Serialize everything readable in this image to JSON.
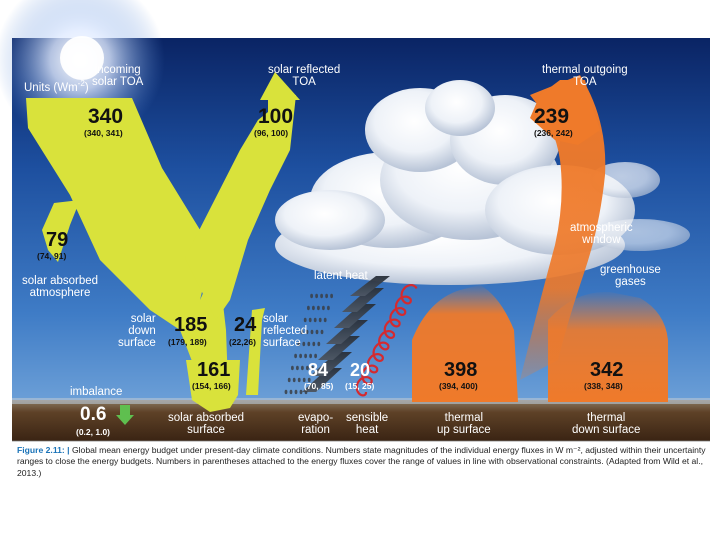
{
  "units": "Units (Wm",
  "units_sup": "-2",
  "units_close": ")",
  "incoming": {
    "line1": "incoming",
    "line2": "solar TOA",
    "value": "340",
    "range": "(340, 341)"
  },
  "solar_reflected_toa": {
    "line1": "solar reflected",
    "line2": "TOA",
    "value": "100",
    "range": "(96, 100)"
  },
  "thermal_outgoing_toa": {
    "line1": "thermal outgoing",
    "line2": "TOA",
    "value": "239",
    "range": "(236, 242)"
  },
  "solar_absorbed_atmosphere": {
    "line1": "solar absorbed",
    "line2": "atmosphere",
    "value": "79",
    "range": "(74, 91)"
  },
  "solar_down_surface": {
    "line1": "solar",
    "line2": "down",
    "line3": "surface",
    "value": "185",
    "range": "(179, 189)"
  },
  "solar_reflected_surface": {
    "line1": "solar",
    "line2": "reflected",
    "line3": "surface",
    "value": "24",
    "range": "(22,26)"
  },
  "solar_absorbed_surface": {
    "line1": "solar absorbed",
    "line2": "surface",
    "value": "161",
    "range": "(154, 166)"
  },
  "latent_heat": {
    "label": "latent heat"
  },
  "evaporation": {
    "line1": "evapo-",
    "line2": "ration",
    "value": "84",
    "range": "(70, 85)"
  },
  "sensible_heat": {
    "line1": "sensible",
    "line2": "heat",
    "value": "20",
    "range": "(15, 25)"
  },
  "thermal_up_surface": {
    "line1": "thermal",
    "line2": "up surface",
    "value": "398",
    "range": "(394, 400)"
  },
  "thermal_down_surface": {
    "line1": "thermal",
    "line2": "down surface",
    "value": "342",
    "range": "(338, 348)"
  },
  "atmospheric_window": {
    "line1": "atmospheric",
    "line2": "window"
  },
  "greenhouse_gases": {
    "line1": "greenhouse",
    "line2": "gases"
  },
  "imbalance": {
    "label": "imbalance",
    "value": "0.6",
    "range": "(0.2, 1.0)"
  },
  "caption": {
    "figure_label": "Figure 2.11: |",
    "text": " Global mean energy budget under present-day climate conditions. Numbers state magnitudes of the individual energy fluxes in W m⁻², adjusted within their uncertainty ranges to close the energy budgets. Numbers in parentheses attached to the energy fluxes cover the range of values in line with observational constraints. (Adapted from Wild et al., 2013.)"
  },
  "colors": {
    "solar": "#d8e23a",
    "thermal": "#ee7a2c",
    "sensible": "#d42a2f",
    "imbalance": "#5fbf4f",
    "sky_top": "#0a2a73",
    "sky_mid": "#2e66b5",
    "ground": "#5a3a22"
  }
}
